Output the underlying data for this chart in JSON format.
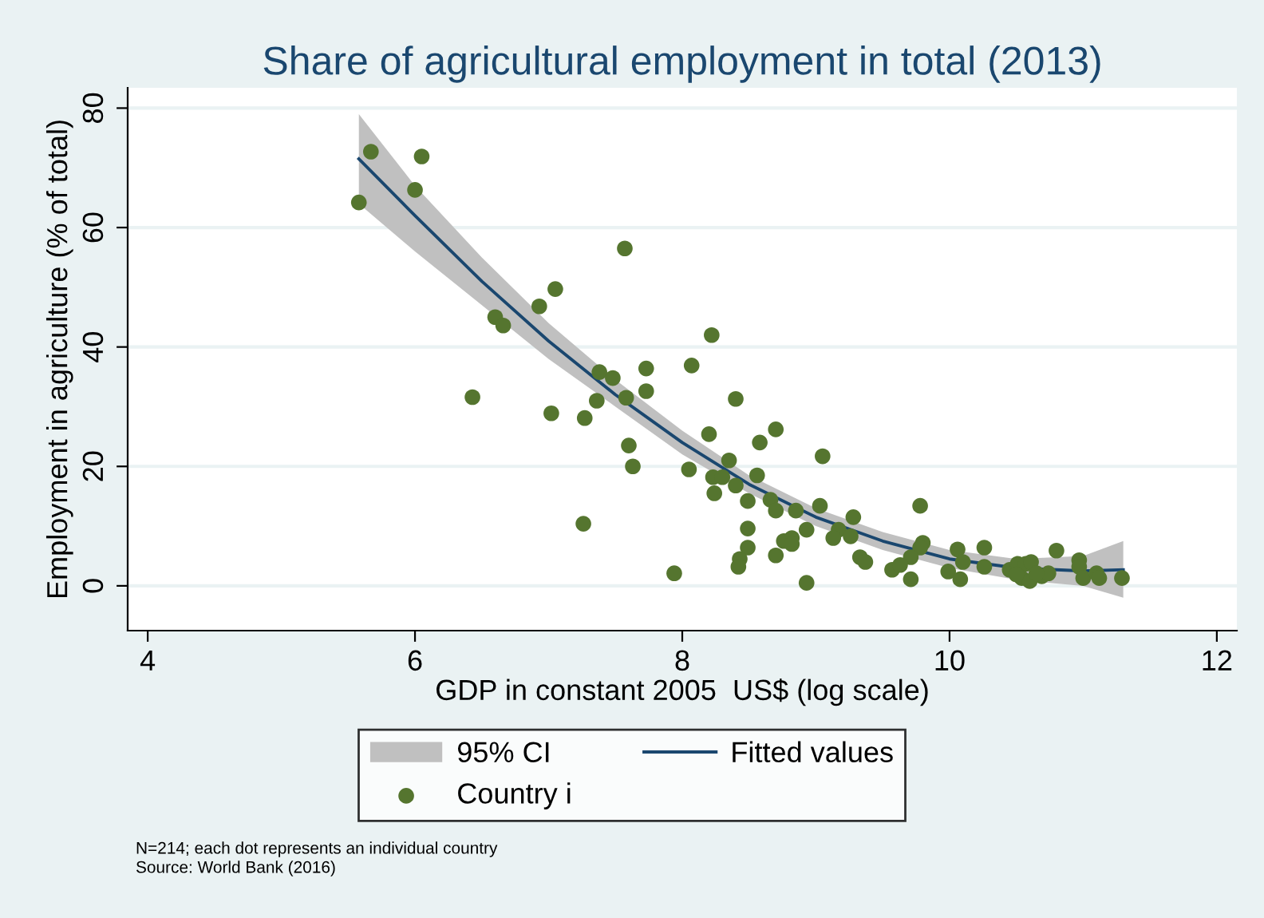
{
  "chart_data": {
    "type": "scatter",
    "title": "Share of agricultural employment in total (2013)",
    "xlabel": "GDP in constant 2005  US$ (log scale)",
    "ylabel": "Employment in agriculture (% of total)",
    "xlim": [
      3.85,
      12.15
    ],
    "xticks": [
      4,
      6,
      8,
      10,
      12
    ],
    "ylim": [
      -7.5,
      83.4
    ],
    "yticks": [
      0,
      20,
      40,
      60,
      80
    ],
    "grid": "y",
    "legend": "bottom",
    "series": [
      {
        "name": "Fitted values",
        "type": "line",
        "color": "#1a476f",
        "line_style": "solid",
        "marker": "none",
        "x": [
          5.58,
          6,
          6.5,
          7,
          7.5,
          8,
          8.5,
          9,
          9.5,
          10,
          10.5,
          11,
          11.3
        ],
        "values": [
          71.5,
          62,
          51,
          41,
          32,
          24,
          17,
          11.5,
          7.5,
          4.5,
          3,
          2.5,
          2.7
        ],
        "lower": [
          64,
          56,
          47,
          38,
          30,
          22,
          15.5,
          10,
          6,
          3,
          1,
          0,
          -2
        ],
        "upper": [
          79,
          67,
          55,
          44,
          34.5,
          26,
          18.5,
          13,
          9,
          6,
          4.5,
          5,
          7.5
        ]
      },
      {
        "name": "Country i",
        "marker": "circle",
        "color": "#55752f",
        "x": [
          5.58,
          5.67,
          6.05,
          6.0,
          6.43,
          6.6,
          6.66,
          6.93,
          7.05,
          7.02,
          7.27,
          7.26,
          7.38,
          7.48,
          7.36,
          7.57,
          7.58,
          7.6,
          7.63,
          7.73,
          7.73,
          7.94,
          8.22,
          8.07,
          8.4,
          8.2,
          8.35,
          8.05,
          8.23,
          8.3,
          8.4,
          8.24,
          8.49,
          8.56,
          8.58,
          8.49,
          8.49,
          8.43,
          8.42,
          8.7,
          9.05,
          8.66,
          8.7,
          8.85,
          9.03,
          8.93,
          9.28,
          9.17,
          9.13,
          9.26,
          8.76,
          8.82,
          8.82,
          8.7,
          8.93,
          9.33,
          9.37,
          9.78,
          9.8,
          9.78,
          9.71,
          9.57,
          9.63,
          9.71,
          9.99,
          10.06,
          10.1,
          10.08,
          10.26,
          10.26,
          10.45,
          10.51,
          10.57,
          10.61,
          10.54,
          10.6,
          10.69,
          10.74,
          10.8,
          10.97,
          10.97,
          11.0,
          11.1,
          11.12,
          11.29,
          10.5,
          10.65
        ],
        "values": [
          64.2,
          72.7,
          71.9,
          66.3,
          31.6,
          45,
          43.6,
          46.8,
          49.7,
          28.9,
          28.1,
          10.4,
          35.8,
          34.8,
          31,
          56.5,
          31.5,
          23.5,
          20,
          36.4,
          32.6,
          2.1,
          42,
          36.9,
          31.3,
          25.4,
          21,
          19.5,
          18.2,
          18.2,
          16.8,
          15.5,
          14.2,
          18.5,
          24,
          9.6,
          6.4,
          4.5,
          3.2,
          26.2,
          21.7,
          14.4,
          12.6,
          12.6,
          13.4,
          9.4,
          11.5,
          9.4,
          8.0,
          8.3,
          7.5,
          8.0,
          7.0,
          5.1,
          0.5,
          4.8,
          4.0,
          13.4,
          7.2,
          6.4,
          4.8,
          2.7,
          3.5,
          1.1,
          2.4,
          6.1,
          4.0,
          1.1,
          6.4,
          3.2,
          2.7,
          3.7,
          3.7,
          4.0,
          1.3,
          0.8,
          1.6,
          2.1,
          5.9,
          4.3,
          3.2,
          1.3,
          2.1,
          1.3,
          1.3,
          1.9,
          2.1
        ]
      }
    ],
    "annotations": [
      "95% CI",
      "N=214; each dot represents an individual country",
      "Source: World Bank (2016)"
    ]
  }
}
